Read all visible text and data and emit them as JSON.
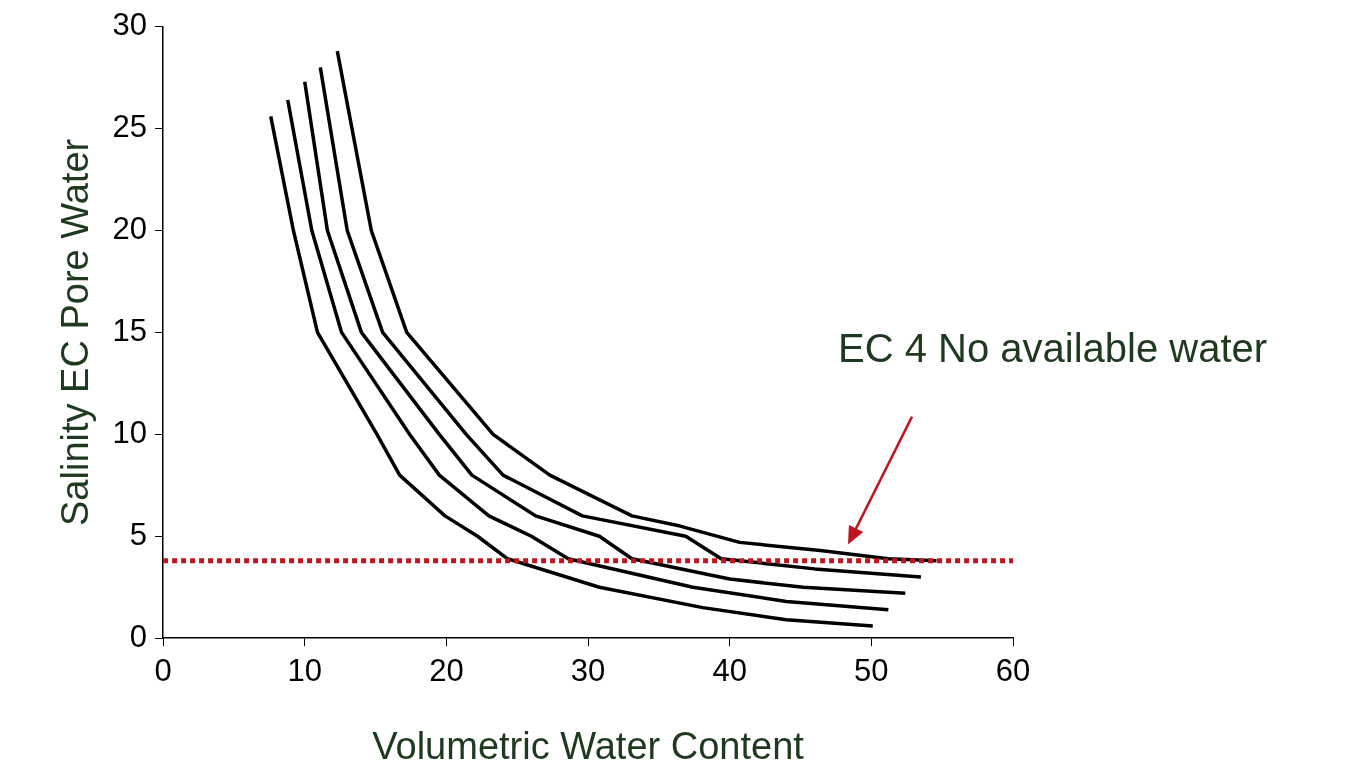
{
  "chart_data": {
    "type": "line",
    "xlabel": "Volumetric Water Content",
    "ylabel": "Salinity EC Pore Water",
    "xlim": [
      0,
      60
    ],
    "xticks": [
      0,
      10,
      20,
      30,
      40,
      50,
      60
    ],
    "ylim": [
      0,
      30
    ],
    "yticks": [
      0,
      5,
      10,
      15,
      20,
      25,
      30
    ],
    "grid": false,
    "legend": false,
    "marker": "none",
    "line_style": "solid",
    "series": [
      {
        "color": "#000000",
        "x": [
          7.6,
          9.2,
          10.9,
          15.1,
          16.7,
          19.9,
          22.2,
          24.3,
          30.8,
          38.1,
          44,
          50.1
        ],
        "values": [
          25.6,
          20,
          15,
          10,
          8,
          6,
          5,
          3.9,
          2.5,
          1.5,
          0.9,
          0.6
        ]
      },
      {
        "color": "#000000",
        "x": [
          8.8,
          10.5,
          12.6,
          17.4,
          19.5,
          23,
          26,
          28.6,
          37.4,
          44,
          51.2
        ],
        "values": [
          26.4,
          20,
          15,
          10,
          8,
          6,
          5,
          3.9,
          2.5,
          1.8,
          1.4
        ]
      },
      {
        "color": "#000000",
        "x": [
          10,
          11.6,
          14,
          19.5,
          21.8,
          26.3,
          30.8,
          33.1,
          40,
          45.2,
          52.4
        ],
        "values": [
          27.3,
          20,
          15,
          10,
          8,
          6,
          5,
          3.9,
          2.9,
          2.5,
          2.2
        ]
      },
      {
        "color": "#000000",
        "x": [
          11.1,
          13,
          15.5,
          21.4,
          24,
          29.6,
          36.9,
          39.4,
          46,
          53.5
        ],
        "values": [
          28,
          20,
          15,
          10,
          8,
          6,
          5,
          3.9,
          3.4,
          3
        ]
      },
      {
        "color": "#000000",
        "x": [
          12.3,
          14.7,
          17.2,
          23.3,
          27.3,
          33.1,
          36.5,
          40.7,
          46.4,
          51.2,
          54.6
        ],
        "values": [
          28.8,
          20,
          15,
          10,
          8,
          6,
          5.5,
          4.7,
          4.3,
          3.9,
          3.8
        ]
      }
    ],
    "ref_lines": [
      {
        "axis": "y",
        "value": 3.8,
        "color": "#c0141e",
        "line_style": "dotted"
      }
    ],
    "annotations": [
      "EC 4 No available water"
    ]
  }
}
